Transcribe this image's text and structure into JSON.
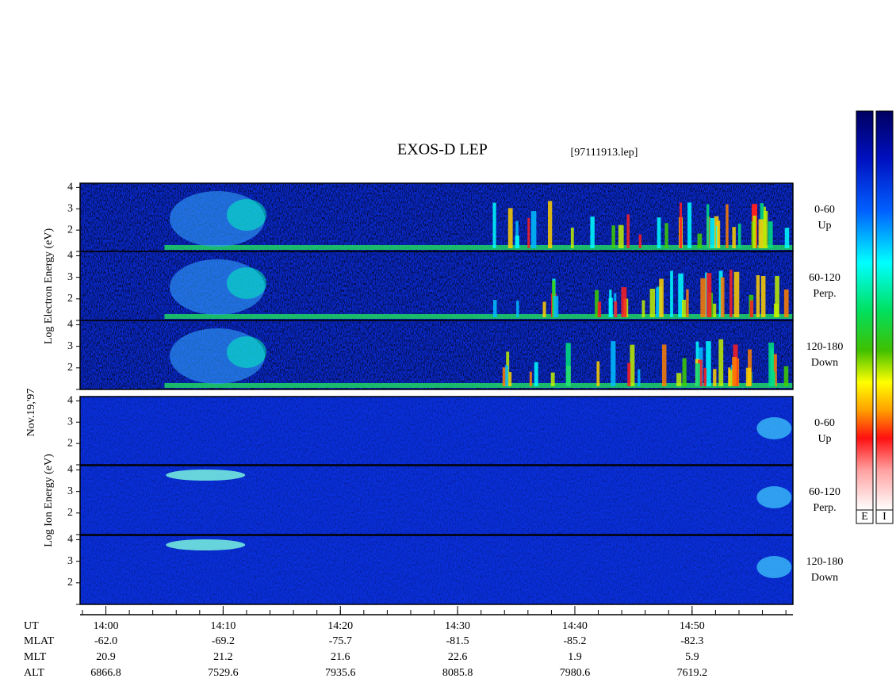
{
  "chart_data": {
    "type": "spectrogram",
    "title": "EXOS-D LEP",
    "file": "[97111913.lep]",
    "date": "Nov.19,'97",
    "xlim": [
      837.8,
      898.6
    ],
    "xticks": [
      {
        "value": 840,
        "label": "14:00"
      },
      {
        "value": 850,
        "label": "14:10"
      },
      {
        "value": 860,
        "label": "14:20"
      },
      {
        "value": 870,
        "label": "14:30"
      },
      {
        "value": 880,
        "label": "14:40"
      },
      {
        "value": 890,
        "label": "14:50"
      }
    ],
    "ylim": [
      1,
      4.2
    ],
    "yticks": [
      2,
      3,
      4
    ],
    "species": [
      {
        "label": "Log  Electron  Energy (eV)",
        "panels": [
          {
            "pitch": "0-60",
            "direction": "Up"
          },
          {
            "pitch": "60-120",
            "direction": "Perp."
          },
          {
            "pitch": "120-180",
            "direction": "Down"
          }
        ]
      },
      {
        "label": "Log  Ion  Energy (eV)",
        "panels": [
          {
            "pitch": "0-60",
            "direction": "Up"
          },
          {
            "pitch": "60-120",
            "direction": "Perp."
          },
          {
            "pitch": "120-180",
            "direction": "Down"
          }
        ]
      }
    ],
    "colorbars": [
      "E",
      "I"
    ],
    "orbit": {
      "time_label": "UT",
      "rows": [
        {
          "label": "MLAT",
          "values": [
            "-62.0",
            "-69.2",
            "-75.7",
            "-81.5",
            "-85.2",
            "-82.3"
          ]
        },
        {
          "label": "MLT",
          "values": [
            "20.9",
            "21.2",
            "21.6",
            "22.6",
            "1.9",
            "5.9"
          ]
        },
        {
          "label": "ALT",
          "values": [
            "6866.8",
            "7529.6",
            "7935.6",
            "8085.8",
            "7980.6",
            "7619.2"
          ]
        }
      ]
    }
  }
}
